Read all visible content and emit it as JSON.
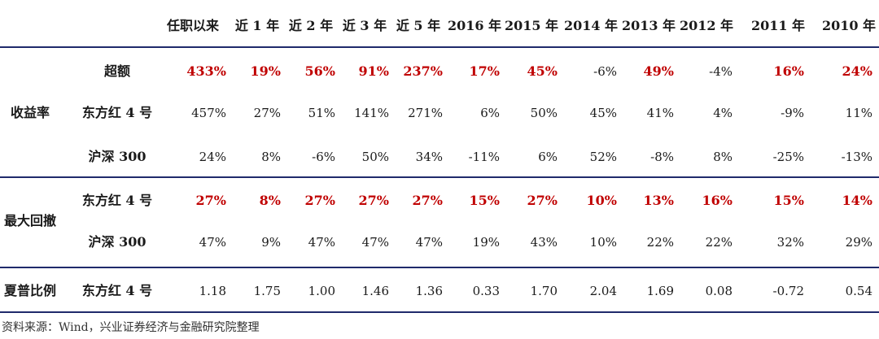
{
  "columns": [
    "任职以来",
    "近 1 年",
    "近 2 年",
    "近 3 年",
    "近 5 年",
    "2016 年",
    "2015 年",
    "2014 年",
    "2013 年",
    "2012 年",
    "2011 年",
    "2010 年"
  ],
  "groups": [
    {
      "label": "收益率",
      "rows": [
        {
          "name": "超额",
          "values": [
            "433%",
            "19%",
            "56%",
            "91%",
            "237%",
            "17%",
            "45%",
            "-6%",
            "49%",
            "-4%",
            "16%",
            "24%"
          ],
          "red": [
            1,
            1,
            1,
            1,
            1,
            1,
            1,
            0,
            1,
            0,
            1,
            1
          ]
        },
        {
          "name": "东方红 4 号",
          "values": [
            "457%",
            "27%",
            "51%",
            "141%",
            "271%",
            "6%",
            "50%",
            "45%",
            "41%",
            "4%",
            "-9%",
            "11%"
          ],
          "red": [
            0,
            0,
            0,
            0,
            0,
            0,
            0,
            0,
            0,
            0,
            0,
            0
          ]
        },
        {
          "name": "沪深 300",
          "values": [
            "24%",
            "8%",
            "-6%",
            "50%",
            "34%",
            "-11%",
            "6%",
            "52%",
            "-8%",
            "8%",
            "-25%",
            "-13%"
          ],
          "red": [
            0,
            0,
            0,
            0,
            0,
            0,
            0,
            0,
            0,
            0,
            0,
            0
          ]
        }
      ]
    },
    {
      "label": "最大回撤",
      "rows": [
        {
          "name": "东方红 4 号",
          "values": [
            "27%",
            "8%",
            "27%",
            "27%",
            "27%",
            "15%",
            "27%",
            "10%",
            "13%",
            "16%",
            "15%",
            "14%"
          ],
          "red": [
            1,
            1,
            1,
            1,
            1,
            1,
            1,
            1,
            1,
            1,
            1,
            1
          ]
        },
        {
          "name": "沪深 300",
          "values": [
            "47%",
            "9%",
            "47%",
            "47%",
            "47%",
            "19%",
            "43%",
            "10%",
            "22%",
            "22%",
            "32%",
            "29%"
          ],
          "red": [
            0,
            0,
            0,
            0,
            0,
            0,
            0,
            0,
            0,
            0,
            0,
            0
          ]
        }
      ]
    },
    {
      "label": "夏普比例",
      "rows": [
        {
          "name": "东方红 4 号",
          "values": [
            "1.18",
            "1.75",
            "1.00",
            "1.46",
            "1.36",
            "0.33",
            "1.70",
            "2.04",
            "1.69",
            "0.08",
            "-0.72",
            "0.54"
          ],
          "red": [
            0,
            0,
            0,
            0,
            0,
            0,
            0,
            0,
            0,
            0,
            0,
            0
          ]
        }
      ]
    }
  ],
  "source": "资料来源：Wind，兴业证券经济与金融研究院整理",
  "colors": {
    "rule": "#1f2a6b",
    "highlight": "#c00000"
  }
}
